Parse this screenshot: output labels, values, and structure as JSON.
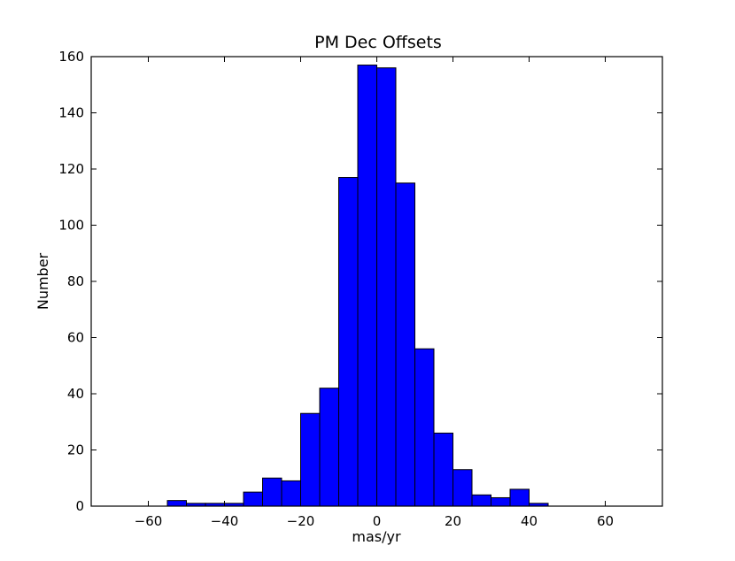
{
  "chart_data": {
    "type": "bar",
    "title": "PM Dec Offsets",
    "xlabel": "mas/yr",
    "ylabel": "Number",
    "xlim": [
      -75,
      75
    ],
    "ylim": [
      0,
      160
    ],
    "xticks": [
      -60,
      -40,
      -20,
      0,
      20,
      40,
      60
    ],
    "xtick_labels": [
      "−60",
      "−40",
      "−20",
      "0",
      "20",
      "40",
      "60"
    ],
    "yticks": [
      0,
      20,
      40,
      60,
      80,
      100,
      120,
      140,
      160
    ],
    "ytick_labels": [
      "0",
      "20",
      "40",
      "60",
      "80",
      "100",
      "120",
      "140",
      "160"
    ],
    "grid": false,
    "bar_color": "#0000ff",
    "bins": [
      {
        "x0": -55,
        "x1": -50,
        "count": 2
      },
      {
        "x0": -50,
        "x1": -45,
        "count": 1
      },
      {
        "x0": -45,
        "x1": -40,
        "count": 1
      },
      {
        "x0": -40,
        "x1": -35,
        "count": 1
      },
      {
        "x0": -35,
        "x1": -30,
        "count": 5
      },
      {
        "x0": -30,
        "x1": -25,
        "count": 10
      },
      {
        "x0": -25,
        "x1": -20,
        "count": 9
      },
      {
        "x0": -20,
        "x1": -15,
        "count": 33
      },
      {
        "x0": -15,
        "x1": -10,
        "count": 42
      },
      {
        "x0": -10,
        "x1": -5,
        "count": 117
      },
      {
        "x0": -5,
        "x1": 0,
        "count": 157
      },
      {
        "x0": 0,
        "x1": 5,
        "count": 156
      },
      {
        "x0": 5,
        "x1": 10,
        "count": 115
      },
      {
        "x0": 10,
        "x1": 15,
        "count": 56
      },
      {
        "x0": 15,
        "x1": 20,
        "count": 26
      },
      {
        "x0": 20,
        "x1": 25,
        "count": 13
      },
      {
        "x0": 25,
        "x1": 30,
        "count": 4
      },
      {
        "x0": 30,
        "x1": 35,
        "count": 3
      },
      {
        "x0": 35,
        "x1": 40,
        "count": 6
      },
      {
        "x0": 40,
        "x1": 45,
        "count": 1
      }
    ]
  }
}
